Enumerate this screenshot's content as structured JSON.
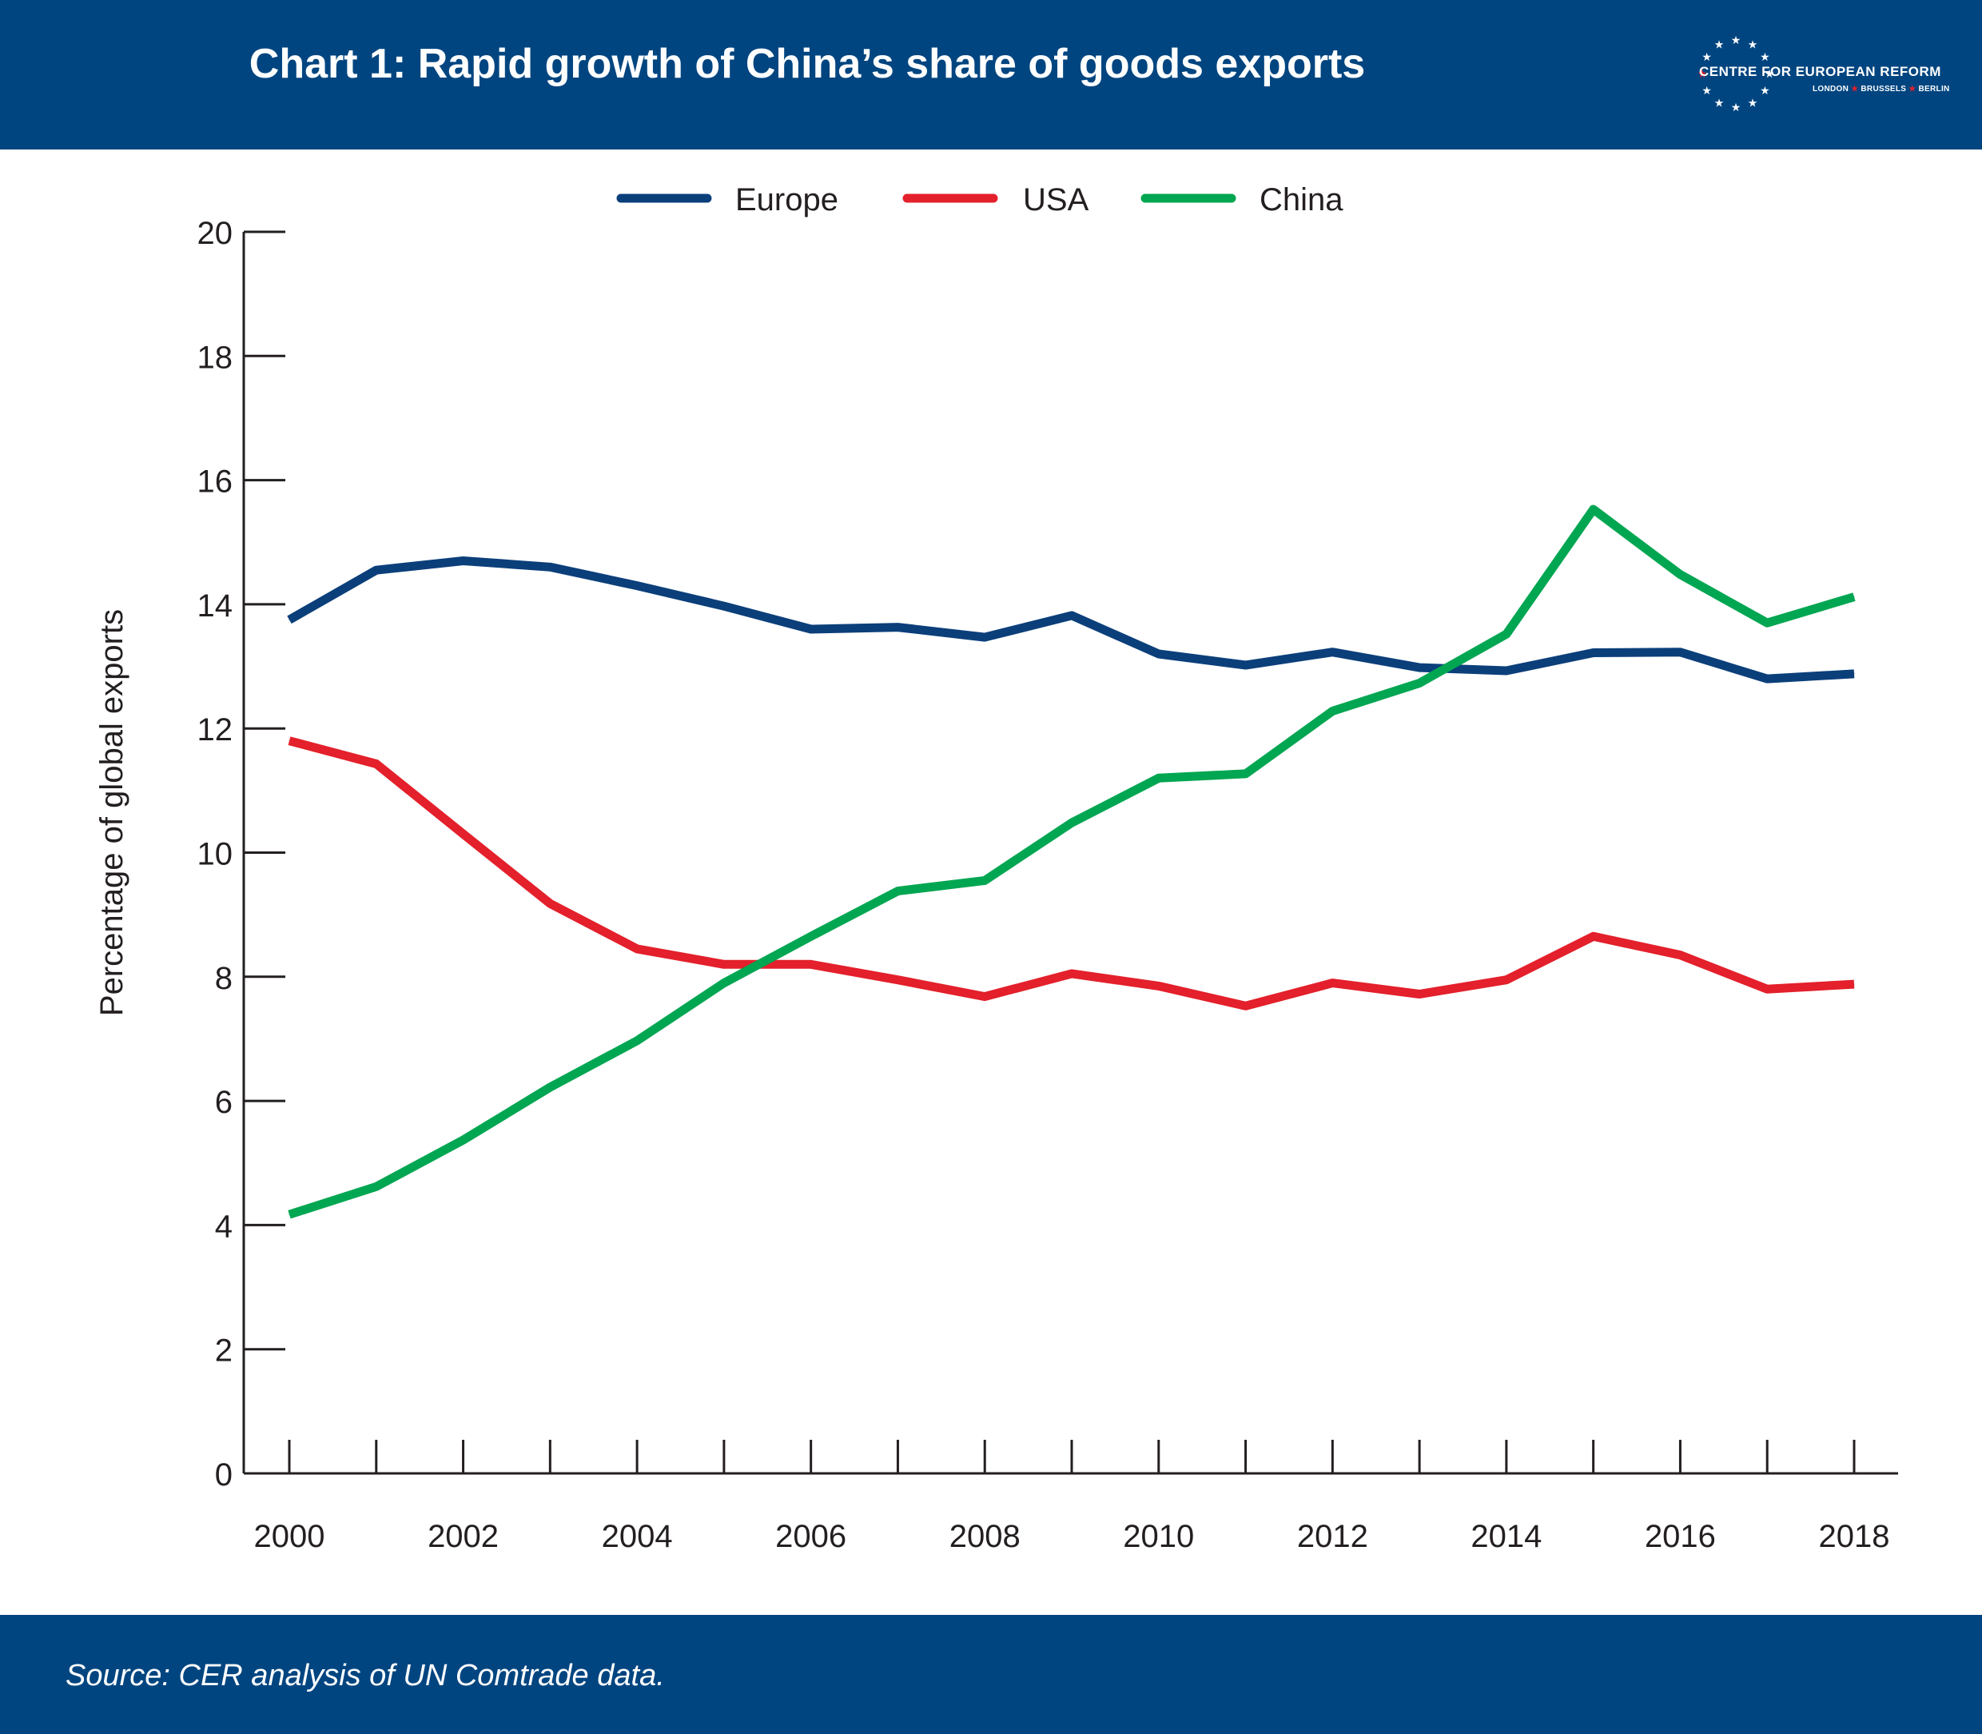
{
  "header": {
    "title": "Chart 1: Rapid growth of China’s share of goods exports",
    "logo": {
      "name": "CENTRE FOR EUROPEAN REFORM",
      "cities": [
        "LONDON",
        "BRUSSELS",
        "BERLIN"
      ],
      "star_color": "#ffffff",
      "accent_star_color": "#e3202b"
    }
  },
  "footer": {
    "source": "Source: CER analysis of UN Comtrade data."
  },
  "colors": {
    "band": "#004580",
    "europe": "#0b3f7a",
    "usa": "#e3202b",
    "china": "#00a651",
    "axis": "#231f20"
  },
  "chart_data": {
    "type": "line",
    "title": "Chart 1: Rapid growth of China’s share of goods exports",
    "xlabel": "",
    "ylabel": "Percentage of global exports",
    "x": [
      2000,
      2001,
      2002,
      2003,
      2004,
      2005,
      2006,
      2007,
      2008,
      2009,
      2010,
      2011,
      2012,
      2013,
      2014,
      2015,
      2016,
      2017,
      2018
    ],
    "xticklabels": [
      "2000",
      "2002",
      "2004",
      "2006",
      "2008",
      "2010",
      "2012",
      "2014",
      "2016",
      "2018"
    ],
    "ylim": [
      0,
      20
    ],
    "yticks": [
      0,
      2,
      4,
      6,
      8,
      10,
      12,
      14,
      16,
      18,
      20
    ],
    "grid": false,
    "legend_position": "top-center",
    "series": [
      {
        "name": "Europe",
        "color": "#0b3f7a",
        "values": [
          13.75,
          14.55,
          14.7,
          14.6,
          14.3,
          13.97,
          13.6,
          13.63,
          13.47,
          13.82,
          13.2,
          13.02,
          13.23,
          12.98,
          12.93,
          13.22,
          13.23,
          12.8,
          12.88
        ]
      },
      {
        "name": "USA",
        "color": "#e3202b",
        "values": [
          11.8,
          11.43,
          10.3,
          9.18,
          8.45,
          8.2,
          8.2,
          7.95,
          7.68,
          8.05,
          7.85,
          7.53,
          7.9,
          7.72,
          7.95,
          8.65,
          8.35,
          7.8,
          7.88
        ]
      },
      {
        "name": "China",
        "color": "#00a651",
        "values": [
          4.17,
          4.62,
          5.37,
          6.22,
          6.97,
          7.9,
          8.65,
          9.38,
          9.55,
          10.48,
          11.2,
          11.27,
          12.28,
          12.73,
          13.52,
          15.53,
          14.48,
          13.7,
          14.12
        ]
      }
    ]
  }
}
